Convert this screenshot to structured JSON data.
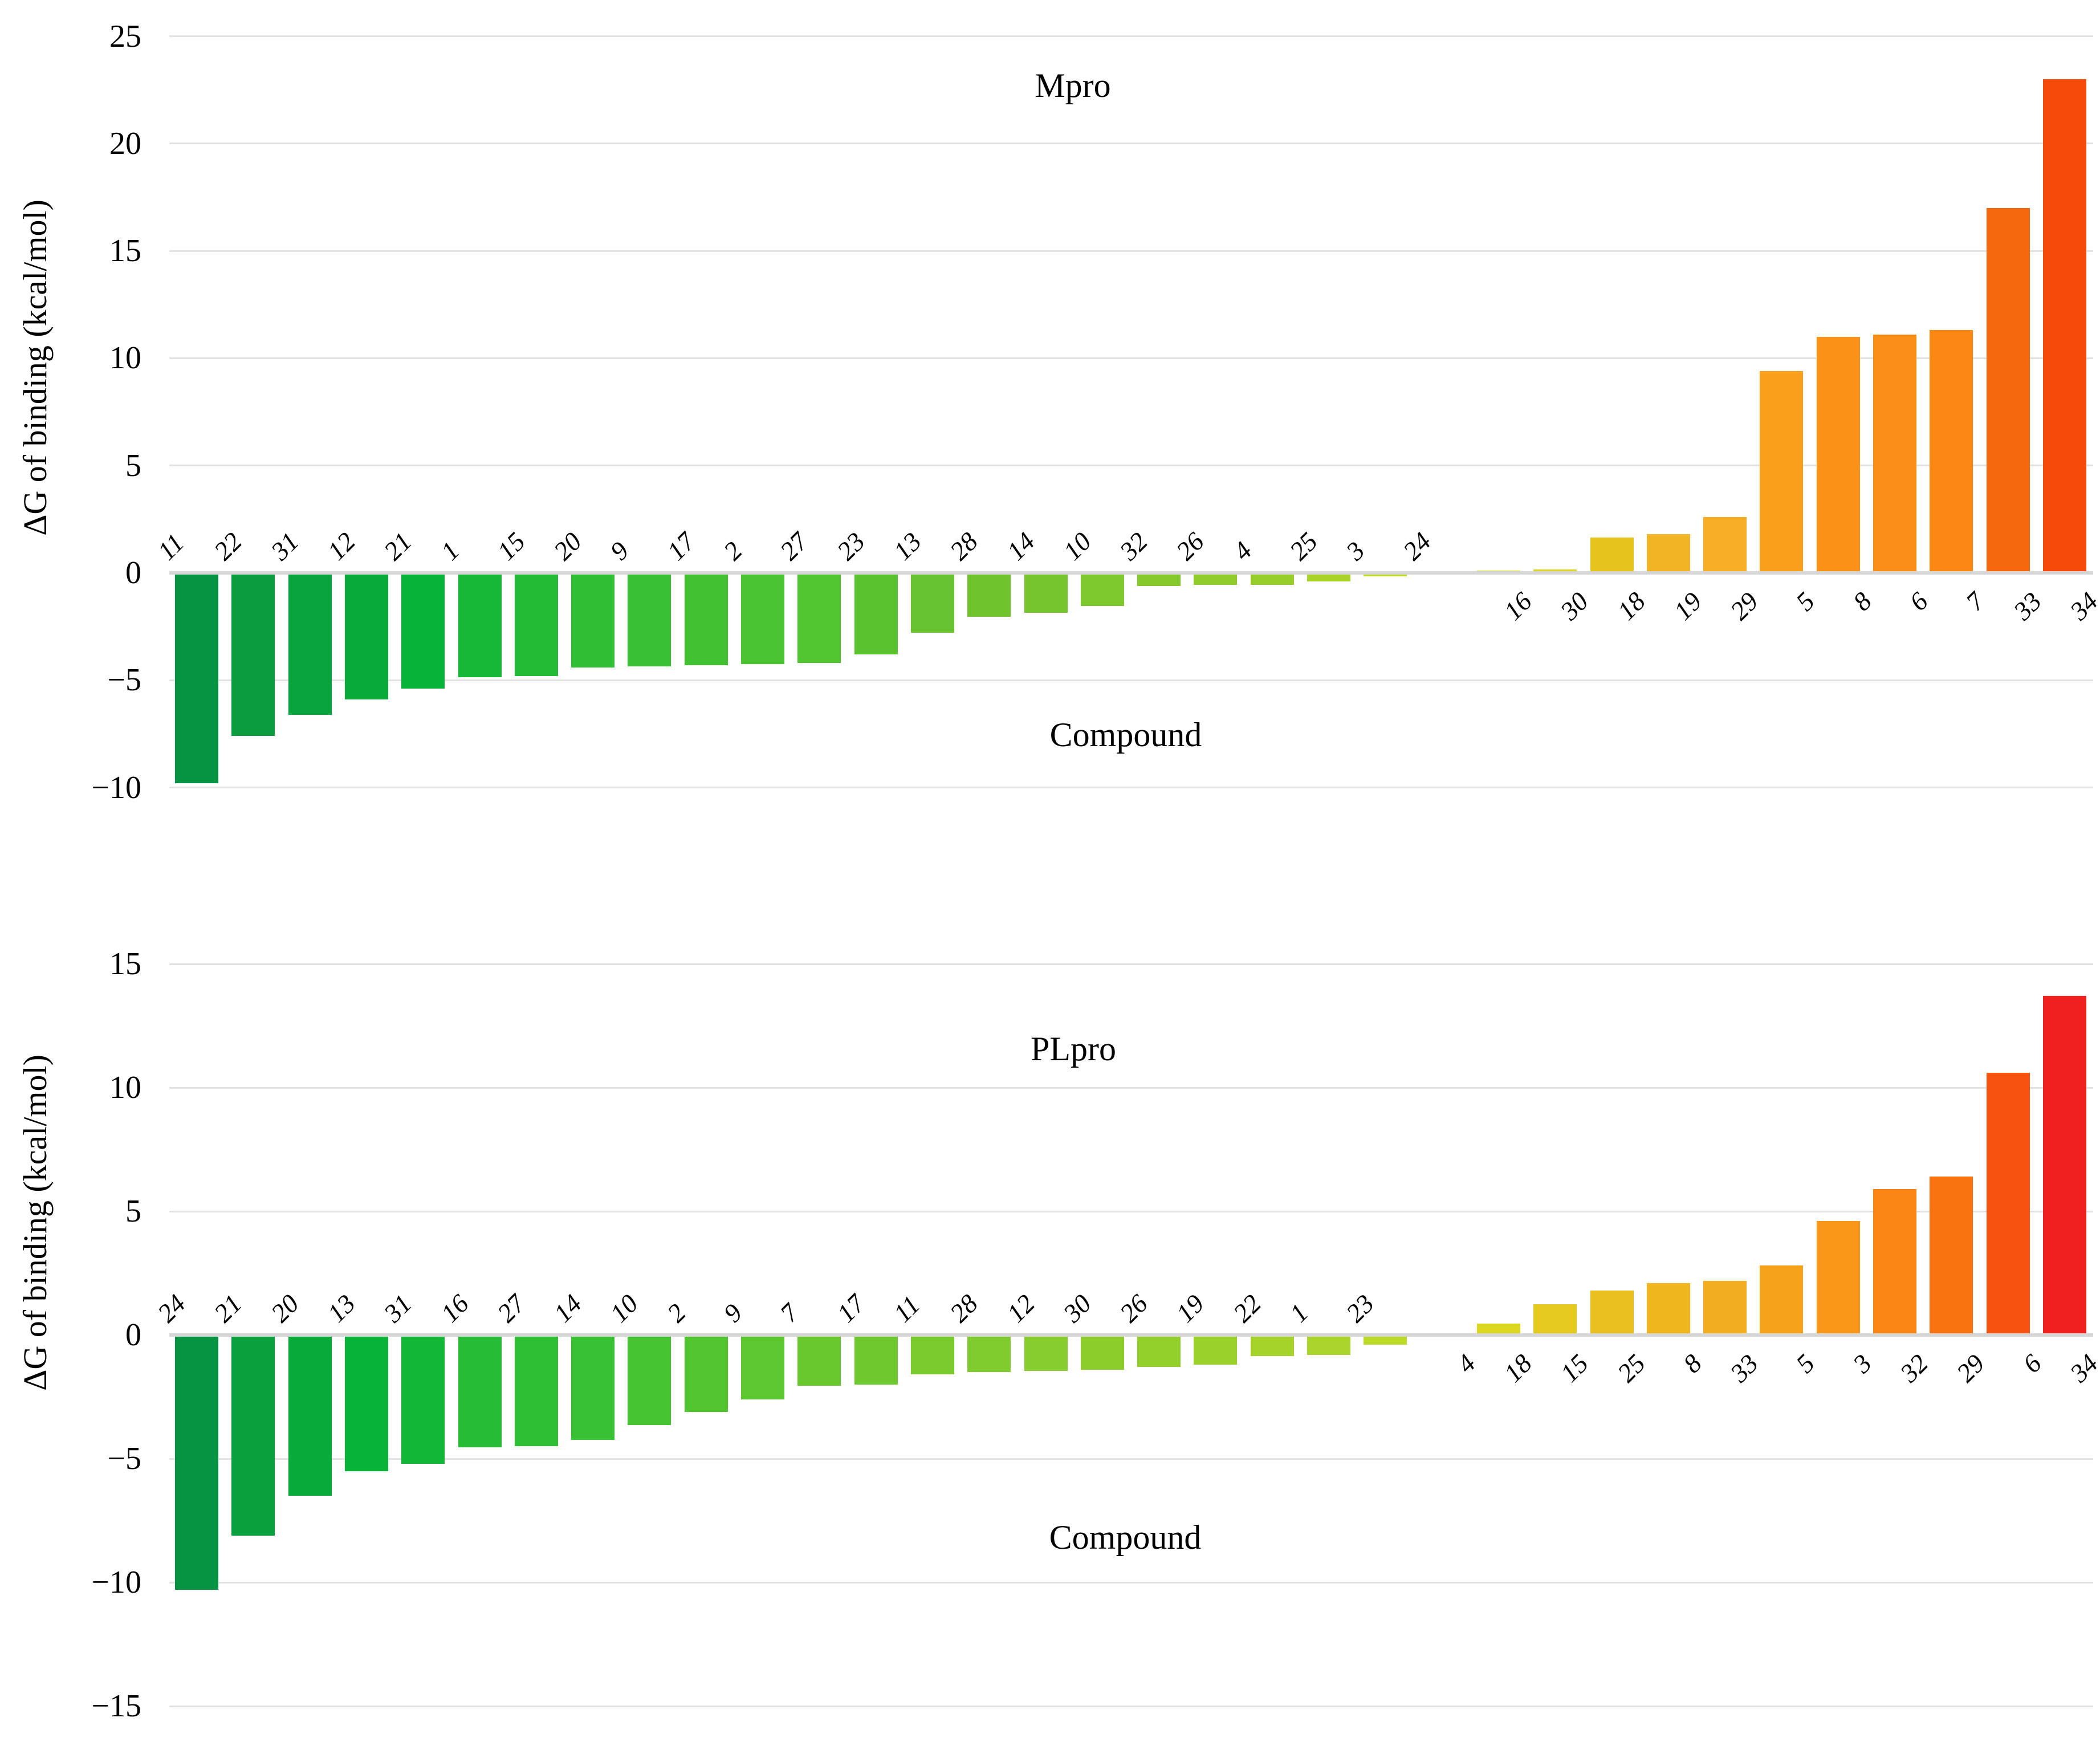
{
  "figure": {
    "background": "#ffffff",
    "text_color": "#000000",
    "gridline_color": "#e2e2e2",
    "axisline_color": "#d6d6d6"
  },
  "chart_data": [
    {
      "type": "bar",
      "title": "Mpro",
      "xlabel": "Compound",
      "ylabel": "ΔG of binding (kcal/mol)",
      "ylim": [
        -10,
        25
      ],
      "yticks": [
        25,
        20,
        15,
        10,
        5,
        0,
        -5,
        -10
      ],
      "grid": true,
      "legend": "none",
      "categories": [
        "11",
        "22",
        "31",
        "12",
        "21",
        "1",
        "15",
        "20",
        "9",
        "17",
        "2",
        "27",
        "23",
        "13",
        "28",
        "14",
        "10",
        "32",
        "26",
        "4",
        "25",
        "3",
        "24",
        "16",
        "30",
        "18",
        "19",
        "29",
        "5",
        "8",
        "6",
        "7",
        "33",
        "34"
      ],
      "values": [
        -9.8,
        -7.6,
        -6.6,
        -5.9,
        -5.4,
        -4.85,
        -4.8,
        -4.4,
        -4.35,
        -4.3,
        -4.25,
        -4.2,
        -3.8,
        -2.8,
        -2.05,
        -1.85,
        -1.55,
        -0.6,
        -0.55,
        -0.55,
        -0.4,
        -0.15,
        -0.05,
        0.1,
        0.15,
        1.65,
        1.8,
        2.6,
        9.4,
        11.0,
        11.1,
        11.3,
        17.0,
        23.0
      ],
      "colors": [
        "#079442",
        "#0a9c3f",
        "#09a33d",
        "#08ab3a",
        "#07b338",
        "#17b837",
        "#23bb36",
        "#30bf34",
        "#3ac133",
        "#42c232",
        "#4ac431",
        "#50c530",
        "#5ac22f",
        "#66c32f",
        "#6fc42e",
        "#75c62e",
        "#7cc82d",
        "#86c92c",
        "#8fcc2c",
        "#97ce2b",
        "#a8d42a",
        "#c0dc27",
        "#cfe024",
        "#d8dc22",
        "#ddd520",
        "#e6c31d",
        "#f0b424",
        "#f7ae26",
        "#f99f1c",
        "#fa9217",
        "#fa8d15",
        "#fa8813",
        "#f6680e",
        "#f54a0a"
      ]
    },
    {
      "type": "bar",
      "title": "PLpro",
      "xlabel": "Compound",
      "ylabel": "ΔG of binding (kcal/mol)",
      "ylim": [
        -15,
        15
      ],
      "yticks": [
        15,
        10,
        5,
        0,
        -5,
        -10,
        -15
      ],
      "grid": true,
      "legend": "none",
      "categories": [
        "24",
        "21",
        "20",
        "13",
        "31",
        "16",
        "27",
        "14",
        "10",
        "2",
        "9",
        "7",
        "17",
        "11",
        "28",
        "12",
        "30",
        "26",
        "19",
        "22",
        "1",
        "23",
        "4",
        "18",
        "15",
        "25",
        "8",
        "33",
        "5",
        "3",
        "32",
        "29",
        "6",
        "34"
      ],
      "values": [
        -10.3,
        -8.1,
        -6.5,
        -5.5,
        -5.2,
        -4.55,
        -4.5,
        -4.25,
        -3.65,
        -3.1,
        -2.6,
        -2.05,
        -2.0,
        -1.6,
        -1.5,
        -1.45,
        -1.4,
        -1.3,
        -1.2,
        -0.85,
        -0.8,
        -0.4,
        0.05,
        0.45,
        1.25,
        1.8,
        2.1,
        2.2,
        2.8,
        4.6,
        5.9,
        6.4,
        10.6,
        13.7
      ],
      "colors": [
        "#079442",
        "#0aa03e",
        "#08ab3a",
        "#07b438",
        "#12b737",
        "#27bc35",
        "#2fbf34",
        "#38c133",
        "#46c431",
        "#52c530",
        "#5cc72f",
        "#68c82e",
        "#6ec92e",
        "#79ca2d",
        "#80cb2d",
        "#86cc2c",
        "#8ccd2c",
        "#93cf2b",
        "#9bd12b",
        "#a5d32a",
        "#abd42a",
        "#bcda28",
        "#d3df23",
        "#dcd720",
        "#e4c91e",
        "#e9bf1d",
        "#efb61d",
        "#f2ae1e",
        "#f7a21b",
        "#f99517",
        "#fa8414",
        "#f97411",
        "#f75210",
        "#f02020"
      ]
    }
  ]
}
